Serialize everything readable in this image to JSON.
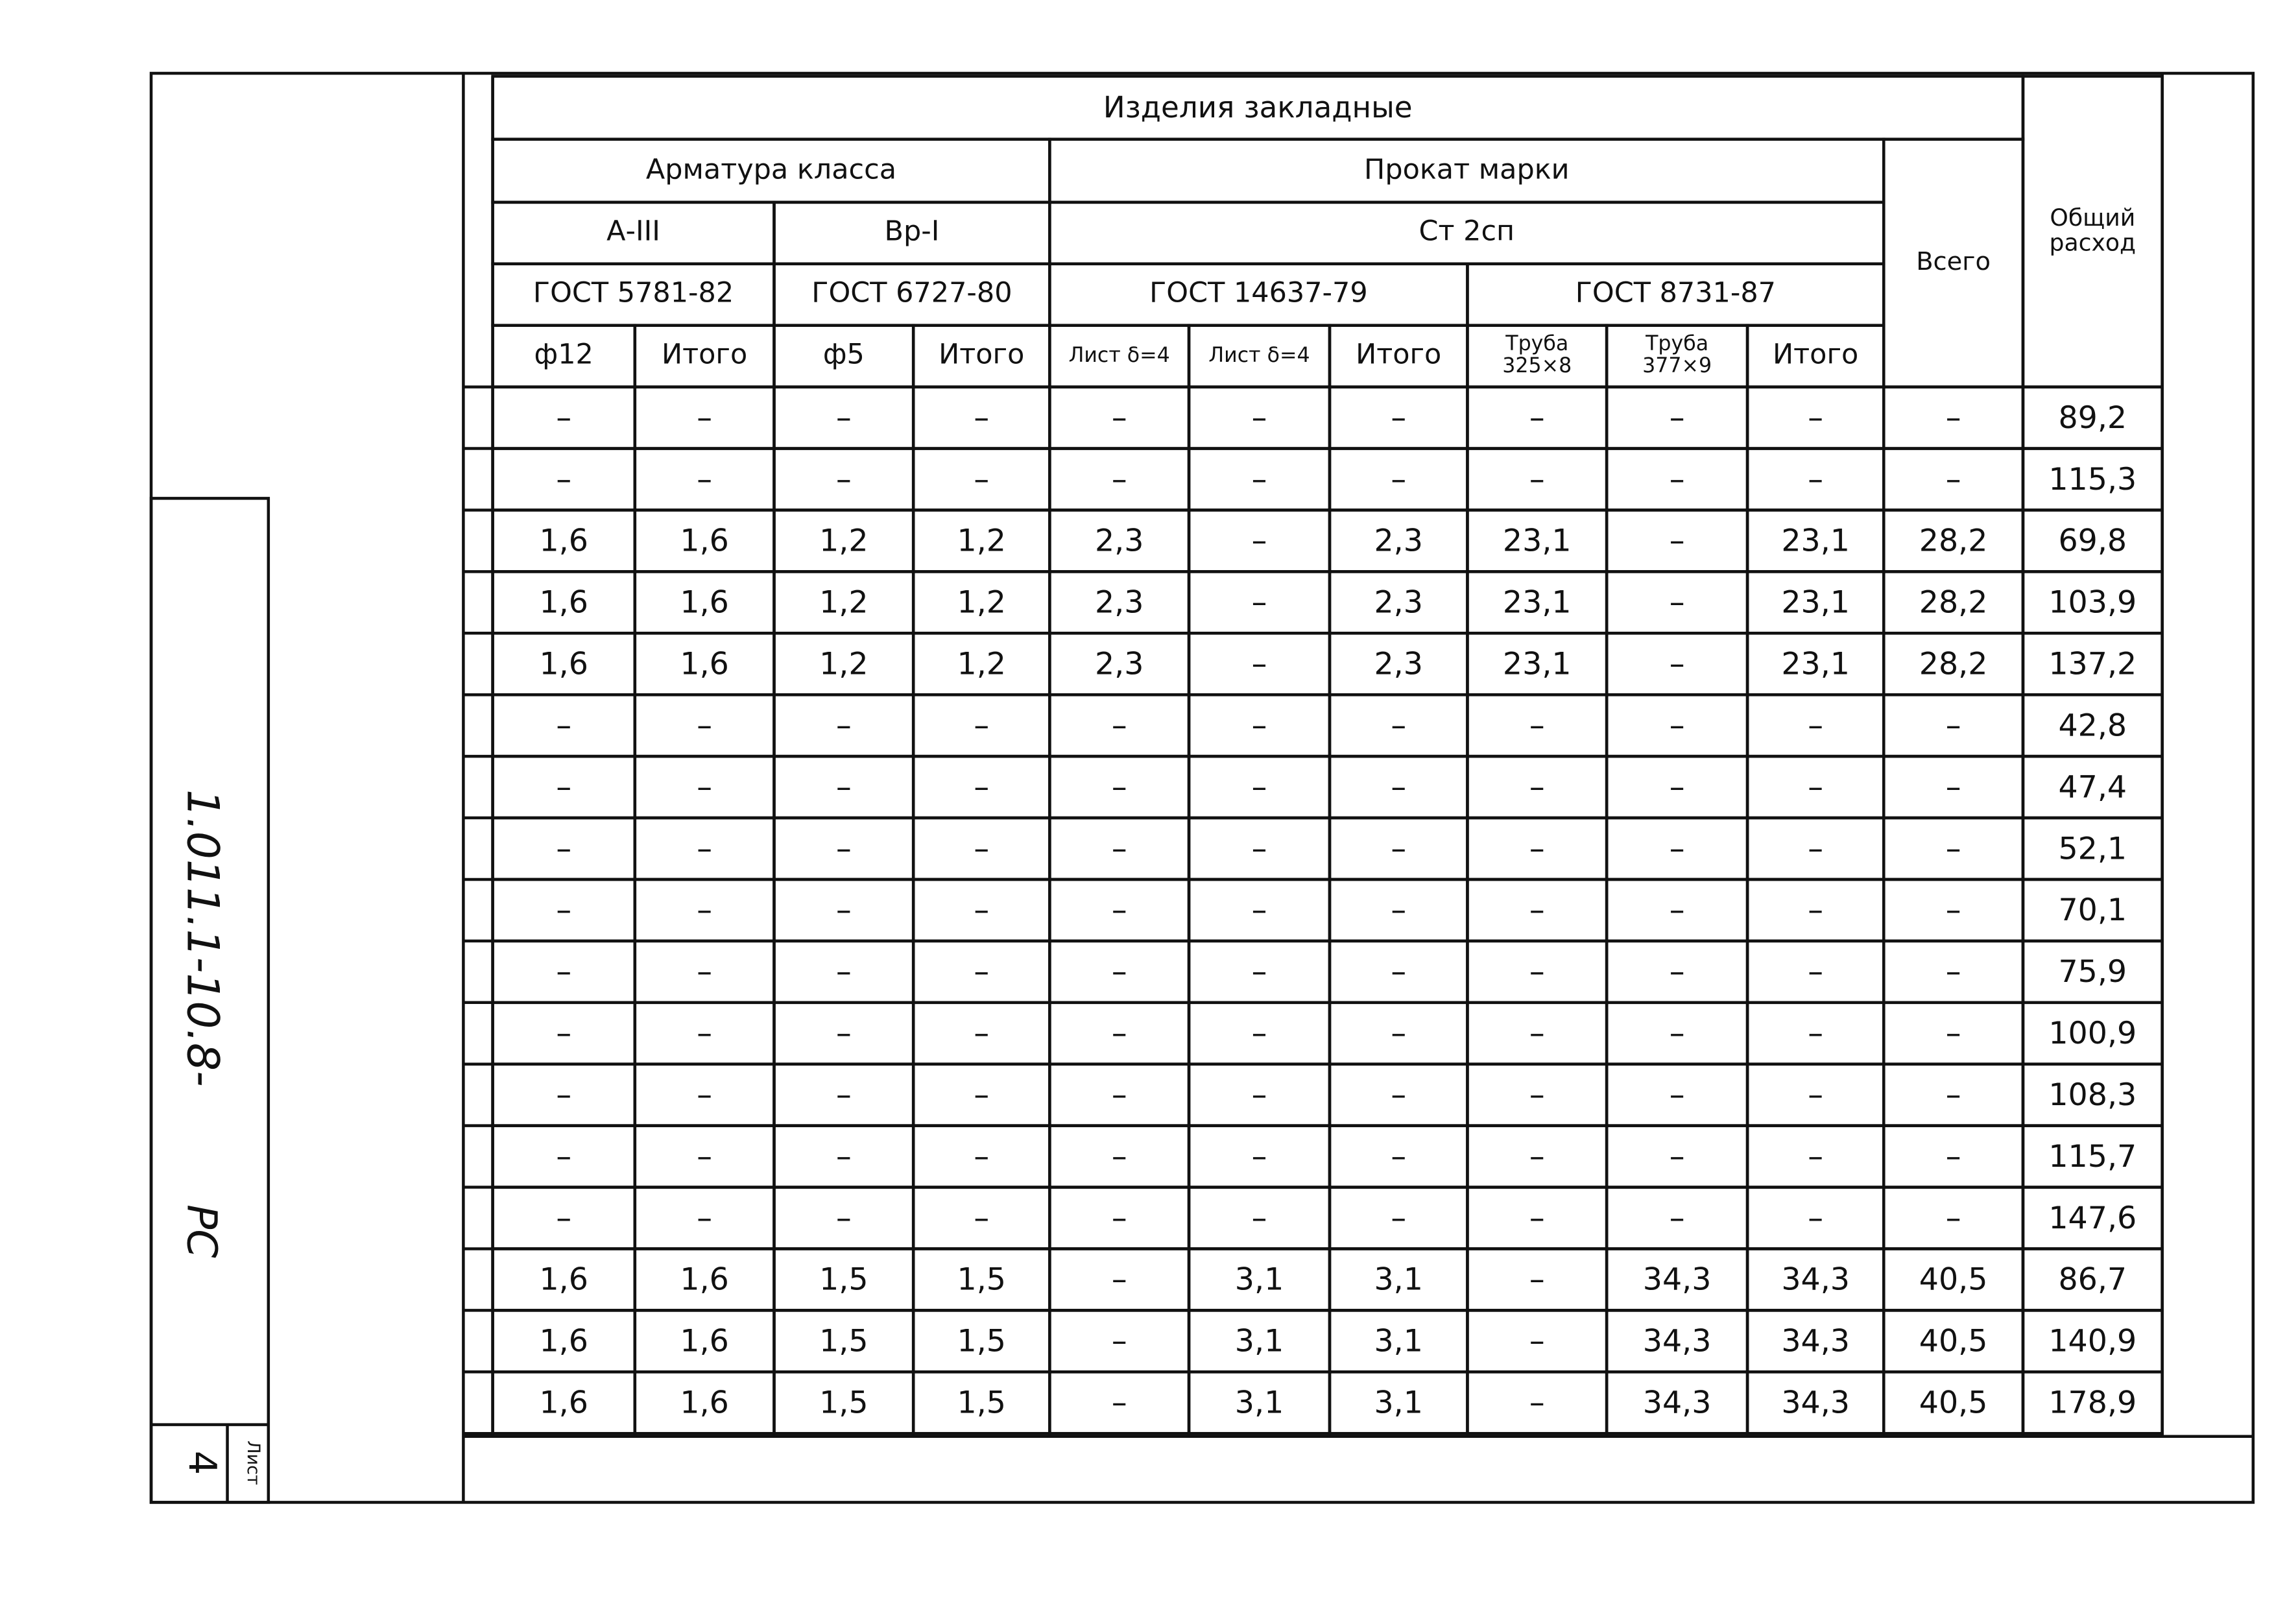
{
  "stamp": {
    "code": "1.011.1-10.8-",
    "part": "РС",
    "sheet_label": "Лист",
    "sheet": "4"
  },
  "table": {
    "title": "Изделия закладные",
    "header_rows": [
      [
        "Арматура класса",
        "Прокат марки"
      ],
      [
        "А-III",
        "Вр-I",
        "Ст 2сп"
      ],
      [
        "ГОСТ 5781-82",
        "ГОСТ 6727-80",
        "ГОСТ 14637-79",
        "ГОСТ 8731-87"
      ],
      [
        "ф12",
        "Итого",
        "ф5",
        "Итого",
        "Лист δ=4",
        "Лист δ=4",
        "Итого",
        "Труба 325×8",
        "Труба 377×9",
        "Итого"
      ]
    ],
    "total_header": "Всего",
    "grand_header": "Общий расход",
    "rows": [
      [
        "–",
        "–",
        "–",
        "–",
        "–",
        "–",
        "–",
        "–",
        "–",
        "–",
        "–",
        "89,2"
      ],
      [
        "–",
        "–",
        "–",
        "–",
        "–",
        "–",
        "–",
        "–",
        "–",
        "–",
        "–",
        "115,3"
      ],
      [
        "1,6",
        "1,6",
        "1,2",
        "1,2",
        "2,3",
        "–",
        "2,3",
        "23,1",
        "–",
        "23,1",
        "28,2",
        "69,8"
      ],
      [
        "1,6",
        "1,6",
        "1,2",
        "1,2",
        "2,3",
        "–",
        "2,3",
        "23,1",
        "–",
        "23,1",
        "28,2",
        "103,9"
      ],
      [
        "1,6",
        "1,6",
        "1,2",
        "1,2",
        "2,3",
        "–",
        "2,3",
        "23,1",
        "–",
        "23,1",
        "28,2",
        "137,2"
      ],
      [
        "–",
        "–",
        "–",
        "–",
        "–",
        "–",
        "–",
        "–",
        "–",
        "–",
        "–",
        "42,8"
      ],
      [
        "–",
        "–",
        "–",
        "–",
        "–",
        "–",
        "–",
        "–",
        "–",
        "–",
        "–",
        "47,4"
      ],
      [
        "–",
        "–",
        "–",
        "–",
        "–",
        "–",
        "–",
        "–",
        "–",
        "–",
        "–",
        "52,1"
      ],
      [
        "–",
        "–",
        "–",
        "–",
        "–",
        "–",
        "–",
        "–",
        "–",
        "–",
        "–",
        "70,1"
      ],
      [
        "–",
        "–",
        "–",
        "–",
        "–",
        "–",
        "–",
        "–",
        "–",
        "–",
        "–",
        "75,9"
      ],
      [
        "–",
        "–",
        "–",
        "–",
        "–",
        "–",
        "–",
        "–",
        "–",
        "–",
        "–",
        "100,9"
      ],
      [
        "–",
        "–",
        "–",
        "–",
        "–",
        "–",
        "–",
        "–",
        "–",
        "–",
        "–",
        "108,3"
      ],
      [
        "–",
        "–",
        "–",
        "–",
        "–",
        "–",
        "–",
        "–",
        "–",
        "–",
        "–",
        "115,7"
      ],
      [
        "–",
        "–",
        "–",
        "–",
        "–",
        "–",
        "–",
        "–",
        "–",
        "–",
        "–",
        "147,6"
      ],
      [
        "1,6",
        "1,6",
        "1,5",
        "1,5",
        "–",
        "3,1",
        "3,1",
        "–",
        "34,3",
        "34,3",
        "40,5",
        "86,7"
      ],
      [
        "1,6",
        "1,6",
        "1,5",
        "1,5",
        "–",
        "3,1",
        "3,1",
        "–",
        "34,3",
        "34,3",
        "40,5",
        "140,9"
      ],
      [
        "1,6",
        "1,6",
        "1,5",
        "1,5",
        "–",
        "3,1",
        "3,1",
        "–",
        "34,3",
        "34,3",
        "40,5",
        "178,9"
      ]
    ]
  }
}
